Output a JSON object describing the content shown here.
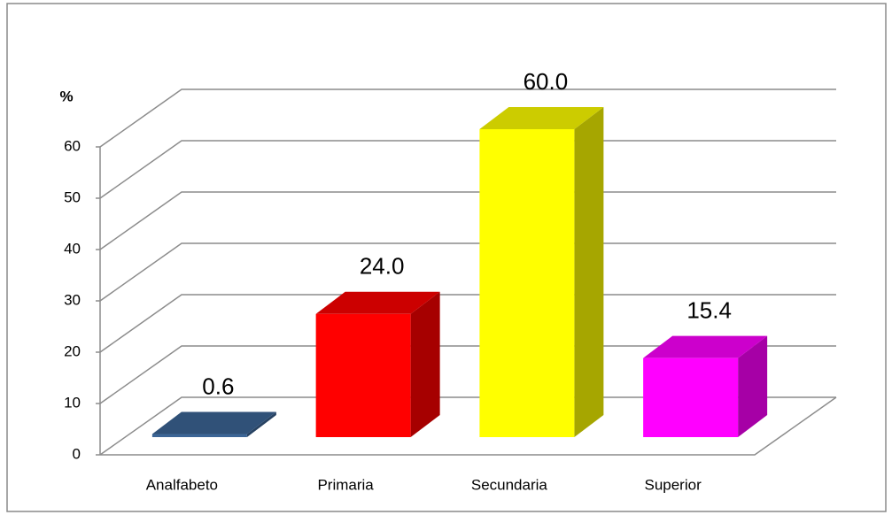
{
  "chart_data": {
    "type": "bar3d",
    "y_label": "%",
    "categories": [
      "Analfabeto",
      "Primaria",
      "Secundaria",
      "Superior"
    ],
    "values": [
      0.6,
      24.0,
      60.0,
      15.4
    ],
    "value_labels": [
      "0.6",
      "24.0",
      "60.0",
      "15.4"
    ],
    "colors": [
      "#3c6596",
      "#ff0000",
      "#ffff00",
      "#ff00ff"
    ],
    "ylim": [
      0,
      60
    ],
    "yticks": [
      0,
      10,
      20,
      30,
      40,
      50,
      60
    ],
    "grid": true
  }
}
